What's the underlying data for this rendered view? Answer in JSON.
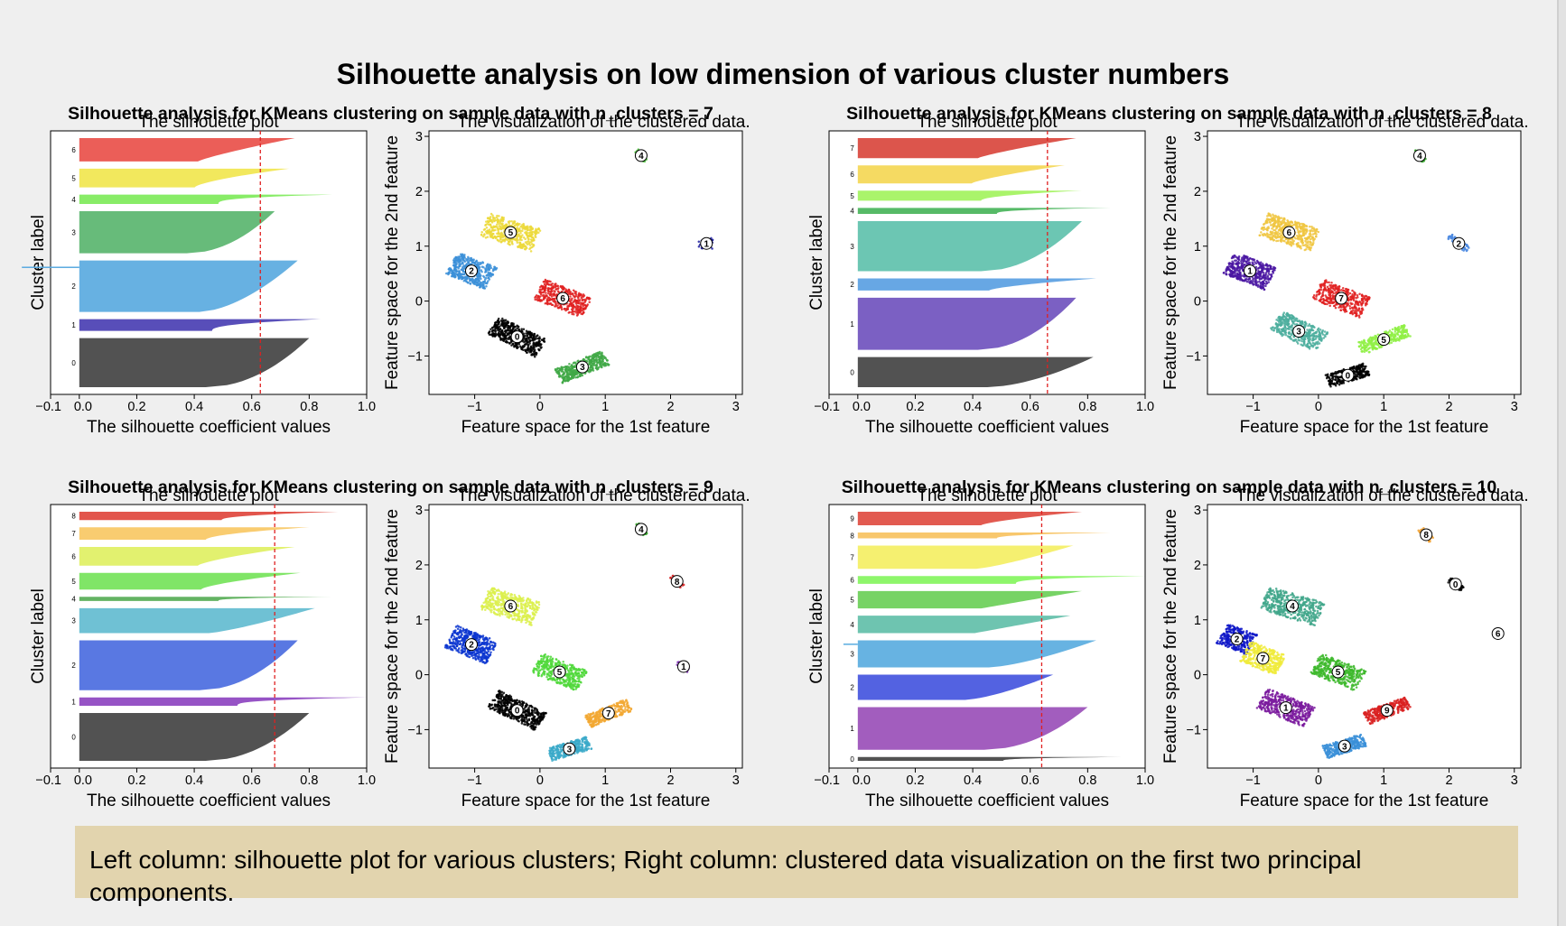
{
  "page": {
    "title": "Silhouette analysis on low dimension of various cluster numbers",
    "caption": "Left column: silhouette plot for various clusters; Right column: clustered data visualization on the first two principal components."
  },
  "labels": {
    "sil_title": "The silhouette plot",
    "sil_xlabel": "The silhouette coefficient values",
    "sil_ylabel": "Cluster label",
    "scat_title": "The visualization of the clustered data.",
    "scat_xlabel": "Feature space for the 1st feature",
    "scat_ylabel": "Feature space for the 2nd feature"
  },
  "chart_data": [
    {
      "type": "bar",
      "title": "Silhouette analysis for KMeans clustering on sample data with n_clusters = 7",
      "n_clusters": 7,
      "silhouette": {
        "xlim": [
          -0.1,
          1.0
        ],
        "xticks": [
          "-0.1",
          "0.0",
          "0.2",
          "0.4",
          "0.6",
          "0.8",
          "1.0"
        ],
        "avg_score": 0.63,
        "clusters": [
          {
            "label": "0",
            "color": "#434343",
            "size": 0.21,
            "max": 0.8,
            "shape": 0.5
          },
          {
            "label": "1",
            "color": "#4a3fb3",
            "size": 0.05,
            "max": 0.84,
            "shape": 2.5
          },
          {
            "label": "2",
            "color": "#5aaae0",
            "size": 0.22,
            "max": 0.76,
            "shape": 0.6,
            "neg": -0.2
          },
          {
            "label": "3",
            "color": "#5ab56f",
            "size": 0.18,
            "max": 0.68,
            "shape": 0.5
          },
          {
            "label": "4",
            "color": "#7eea5a",
            "size": 0.04,
            "max": 0.88,
            "shape": 3
          },
          {
            "label": "5",
            "color": "#f1e64f",
            "size": 0.08,
            "max": 0.73,
            "shape": 1.5
          },
          {
            "label": "6",
            "color": "#e9504a",
            "size": 0.1,
            "max": 0.75,
            "shape": 1.2
          }
        ]
      },
      "scatter": {
        "xlim": [
          -1.7,
          3.1
        ],
        "ylim": [
          -1.7,
          3.1
        ],
        "xticks": [
          -1,
          0,
          1,
          2,
          3
        ],
        "yticks": [
          -1,
          0,
          1,
          2,
          3
        ],
        "xticklabels": [
          "−1",
          "0",
          "1",
          "2",
          "3"
        ],
        "yticklabels": [
          "−1",
          "0",
          "1",
          "2",
          "3"
        ],
        "clusters": [
          {
            "label": "0",
            "color": "#000000",
            "cx": -0.35,
            "cy": -0.65,
            "sx": 0.42,
            "sy": 0.18,
            "rot": -30,
            "n": 500
          },
          {
            "label": "1",
            "color": "#1f1fa0",
            "cx": 2.55,
            "cy": 1.05,
            "sx": 0.12,
            "sy": 0.1,
            "rot": 0,
            "n": 30
          },
          {
            "label": "2",
            "color": "#3b8fd8",
            "cx": -1.05,
            "cy": 0.55,
            "sx": 0.33,
            "sy": 0.22,
            "rot": -25,
            "n": 450
          },
          {
            "label": "3",
            "color": "#3fa845",
            "cx": 0.65,
            "cy": -1.2,
            "sx": 0.4,
            "sy": 0.14,
            "rot": 25,
            "n": 400
          },
          {
            "label": "4",
            "color": "#4cbf3c",
            "cx": 1.55,
            "cy": 2.65,
            "sx": 0.12,
            "sy": 0.04,
            "rot": -55,
            "n": 50
          },
          {
            "label": "5",
            "color": "#ecd93a",
            "cx": -0.45,
            "cy": 1.25,
            "sx": 0.42,
            "sy": 0.22,
            "rot": -20,
            "n": 450
          },
          {
            "label": "6",
            "color": "#e02020",
            "cx": 0.35,
            "cy": 0.05,
            "sx": 0.4,
            "sy": 0.2,
            "rot": -25,
            "n": 400
          }
        ]
      }
    },
    {
      "type": "bar",
      "title": "Silhouette analysis for KMeans clustering on sample data with n_clusters = 8",
      "n_clusters": 8,
      "silhouette": {
        "xlim": [
          -0.1,
          1.0
        ],
        "xticks": [
          "-0.1",
          "0.0",
          "0.2",
          "0.4",
          "0.6",
          "0.8",
          "1.0"
        ],
        "avg_score": 0.66,
        "clusters": [
          {
            "label": "0",
            "color": "#434343",
            "size": 0.15,
            "max": 0.82,
            "shape": 0.6
          },
          {
            "label": "1",
            "color": "#7053be",
            "size": 0.26,
            "max": 0.76,
            "shape": 0.5
          },
          {
            "label": "2",
            "color": "#5a9fe2",
            "size": 0.06,
            "max": 0.83,
            "shape": 1.5
          },
          {
            "label": "3",
            "color": "#5fc1ad",
            "size": 0.25,
            "max": 0.78,
            "shape": 0.5
          },
          {
            "label": "4",
            "color": "#48b45a",
            "size": 0.03,
            "max": 0.88,
            "shape": 3
          },
          {
            "label": "5",
            "color": "#a3f35e",
            "size": 0.05,
            "max": 0.78,
            "shape": 2
          },
          {
            "label": "6",
            "color": "#f4d755",
            "size": 0.09,
            "max": 0.72,
            "shape": 1.3
          },
          {
            "label": "7",
            "color": "#d9463d",
            "size": 0.1,
            "max": 0.76,
            "shape": 1.2
          }
        ]
      },
      "scatter": {
        "xlim": [
          -1.7,
          3.1
        ],
        "ylim": [
          -1.7,
          3.1
        ],
        "xticks": [
          -1,
          0,
          1,
          2,
          3
        ],
        "yticks": [
          -1,
          0,
          1,
          2,
          3
        ],
        "xticklabels": [
          "−1",
          "0",
          "1",
          "2",
          "3"
        ],
        "yticklabels": [
          "−1",
          "0",
          "1",
          "2",
          "3"
        ],
        "clusters": [
          {
            "label": "0",
            "color": "#000000",
            "cx": 0.45,
            "cy": -1.35,
            "sx": 0.32,
            "sy": 0.12,
            "rot": 20,
            "n": 300
          },
          {
            "label": "1",
            "color": "#4a16a2",
            "cx": -1.05,
            "cy": 0.55,
            "sx": 0.35,
            "sy": 0.22,
            "rot": -25,
            "n": 450
          },
          {
            "label": "2",
            "color": "#4a88e0",
            "cx": 2.15,
            "cy": 1.05,
            "sx": 0.2,
            "sy": 0.06,
            "rot": -40,
            "n": 60
          },
          {
            "label": "3",
            "color": "#4cae9d",
            "cx": -0.3,
            "cy": -0.55,
            "sx": 0.4,
            "sy": 0.2,
            "rot": -30,
            "n": 450
          },
          {
            "label": "4",
            "color": "#3aa830",
            "cx": 1.55,
            "cy": 2.65,
            "sx": 0.12,
            "sy": 0.04,
            "rot": -55,
            "n": 50
          },
          {
            "label": "5",
            "color": "#8ff044",
            "cx": 1.0,
            "cy": -0.7,
            "sx": 0.4,
            "sy": 0.12,
            "rot": 25,
            "n": 300
          },
          {
            "label": "6",
            "color": "#f0c640",
            "cx": -0.45,
            "cy": 1.25,
            "sx": 0.42,
            "sy": 0.22,
            "rot": -20,
            "n": 450
          },
          {
            "label": "7",
            "color": "#e02020",
            "cx": 0.35,
            "cy": 0.05,
            "sx": 0.4,
            "sy": 0.2,
            "rot": -25,
            "n": 400
          }
        ]
      }
    },
    {
      "type": "bar",
      "title": "Silhouette analysis for KMeans clustering on sample data with n_clusters = 9",
      "n_clusters": 9,
      "silhouette": {
        "xlim": [
          -0.1,
          1.0
        ],
        "xticks": [
          "-0.1",
          "0.0",
          "0.2",
          "0.4",
          "0.6",
          "0.8",
          "1.0"
        ],
        "avg_score": 0.68,
        "clusters": [
          {
            "label": "0",
            "color": "#434343",
            "size": 0.23,
            "max": 0.8,
            "shape": 0.5
          },
          {
            "label": "1",
            "color": "#8d44c0",
            "size": 0.04,
            "max": 1.0,
            "shape": 3
          },
          {
            "label": "2",
            "color": "#4b6ce0",
            "size": 0.24,
            "max": 0.76,
            "shape": 0.5
          },
          {
            "label": "3",
            "color": "#63bcd0",
            "size": 0.12,
            "max": 0.82,
            "shape": 0.8
          },
          {
            "label": "4",
            "color": "#56ad55",
            "size": 0.02,
            "max": 0.88,
            "shape": 3
          },
          {
            "label": "5",
            "color": "#75e35a",
            "size": 0.08,
            "max": 0.77,
            "shape": 1.5
          },
          {
            "label": "6",
            "color": "#dff063",
            "size": 0.09,
            "max": 0.75,
            "shape": 1.4
          },
          {
            "label": "7",
            "color": "#f9c864",
            "size": 0.06,
            "max": 0.8,
            "shape": 1.8
          },
          {
            "label": "8",
            "color": "#e0473d",
            "size": 0.04,
            "max": 0.9,
            "shape": 2.2
          }
        ]
      },
      "scatter": {
        "xlim": [
          -1.7,
          3.1
        ],
        "ylim": [
          -1.7,
          3.1
        ],
        "xticks": [
          -1,
          0,
          1,
          2,
          3
        ],
        "yticks": [
          -1,
          0,
          1,
          2,
          3
        ],
        "xticklabels": [
          "−1",
          "0",
          "1",
          "2",
          "3"
        ],
        "yticklabels": [
          "−1",
          "0",
          "1",
          "2",
          "3"
        ],
        "clusters": [
          {
            "label": "0",
            "color": "#000000",
            "cx": -0.35,
            "cy": -0.65,
            "sx": 0.42,
            "sy": 0.18,
            "rot": -30,
            "n": 500
          },
          {
            "label": "1",
            "color": "#7b2cb3",
            "cx": 2.2,
            "cy": 0.15,
            "sx": 0.12,
            "sy": 0.05,
            "rot": -45,
            "n": 30
          },
          {
            "label": "2",
            "color": "#0a35d0",
            "cx": -1.05,
            "cy": 0.55,
            "sx": 0.35,
            "sy": 0.22,
            "rot": -25,
            "n": 450
          },
          {
            "label": "3",
            "color": "#3aa9c9",
            "cx": 0.45,
            "cy": -1.35,
            "sx": 0.32,
            "sy": 0.12,
            "rot": 20,
            "n": 300
          },
          {
            "label": "4",
            "color": "#3aa830",
            "cx": 1.55,
            "cy": 2.65,
            "sx": 0.12,
            "sy": 0.04,
            "rot": -55,
            "n": 50
          },
          {
            "label": "5",
            "color": "#4fd83a",
            "cx": 0.3,
            "cy": 0.05,
            "sx": 0.38,
            "sy": 0.2,
            "rot": -25,
            "n": 400
          },
          {
            "label": "6",
            "color": "#dcf04c",
            "cx": -0.45,
            "cy": 1.25,
            "sx": 0.42,
            "sy": 0.22,
            "rot": -20,
            "n": 450
          },
          {
            "label": "7",
            "color": "#f2a833",
            "cx": 1.05,
            "cy": -0.7,
            "sx": 0.35,
            "sy": 0.12,
            "rot": 25,
            "n": 300
          },
          {
            "label": "8",
            "color": "#d92a2a",
            "cx": 2.1,
            "cy": 1.7,
            "sx": 0.12,
            "sy": 0.05,
            "rot": -45,
            "n": 50
          }
        ]
      }
    },
    {
      "type": "bar",
      "title": "Silhouette analysis for KMeans clustering on sample data with n_clusters = 10",
      "n_clusters": 10,
      "silhouette": {
        "xlim": [
          -0.1,
          1.0
        ],
        "xticks": [
          "-0.1",
          "0.0",
          "0.2",
          "0.4",
          "0.6",
          "0.8",
          "1.0"
        ],
        "avg_score": 0.64,
        "clusters": [
          {
            "label": "0",
            "color": "#434343",
            "size": 0.02,
            "max": 0.92,
            "shape": 3
          },
          {
            "label": "1",
            "color": "#9a4fb8",
            "size": 0.22,
            "max": 0.8,
            "shape": 0.5
          },
          {
            "label": "2",
            "color": "#4455de",
            "size": 0.13,
            "max": 0.68,
            "shape": 0.7
          },
          {
            "label": "3",
            "color": "#5aace0",
            "size": 0.14,
            "max": 0.83,
            "shape": 0.7,
            "neg": -0.05
          },
          {
            "label": "4",
            "color": "#62bfa9",
            "size": 0.09,
            "max": 0.74,
            "shape": 1
          },
          {
            "label": "5",
            "color": "#6bcf58",
            "size": 0.09,
            "max": 0.78,
            "shape": 1
          },
          {
            "label": "6",
            "color": "#84f55e",
            "size": 0.04,
            "max": 1.0,
            "shape": 3
          },
          {
            "label": "7",
            "color": "#f4ef64",
            "size": 0.12,
            "max": 0.75,
            "shape": 0.8
          },
          {
            "label": "8",
            "color": "#f7c261",
            "size": 0.03,
            "max": 0.88,
            "shape": 2.5
          },
          {
            "label": "9",
            "color": "#df4c41",
            "size": 0.07,
            "max": 0.78,
            "shape": 1.4
          }
        ]
      },
      "scatter": {
        "xlim": [
          -1.7,
          3.1
        ],
        "ylim": [
          -1.7,
          3.1
        ],
        "xticks": [
          -1,
          0,
          1,
          2,
          3
        ],
        "yticks": [
          -1,
          0,
          1,
          2,
          3
        ],
        "xticklabels": [
          "−1",
          "0",
          "1",
          "2",
          "3"
        ],
        "yticklabels": [
          "−1",
          "0",
          "1",
          "2",
          "3"
        ],
        "clusters": [
          {
            "label": "0",
            "color": "#000000",
            "cx": 2.1,
            "cy": 1.65,
            "sx": 0.14,
            "sy": 0.05,
            "rot": -40,
            "n": 60
          },
          {
            "label": "1",
            "color": "#7a1a9e",
            "cx": -0.5,
            "cy": -0.6,
            "sx": 0.4,
            "sy": 0.2,
            "rot": -25,
            "n": 450
          },
          {
            "label": "2",
            "color": "#0e16c8",
            "cx": -1.25,
            "cy": 0.65,
            "sx": 0.25,
            "sy": 0.2,
            "rot": -25,
            "n": 300
          },
          {
            "label": "3",
            "color": "#3a8fd8",
            "cx": 0.4,
            "cy": -1.3,
            "sx": 0.32,
            "sy": 0.12,
            "rot": 20,
            "n": 300
          },
          {
            "label": "4",
            "color": "#3fa68a",
            "cx": -0.4,
            "cy": 1.25,
            "sx": 0.45,
            "sy": 0.22,
            "rot": -20,
            "n": 450
          },
          {
            "label": "5",
            "color": "#3db82c",
            "cx": 0.3,
            "cy": 0.05,
            "sx": 0.38,
            "sy": 0.2,
            "rot": -25,
            "n": 400
          },
          {
            "label": "6",
            "color": "#2eb45a",
            "cx": 2.75,
            "cy": 0.75,
            "sx": 0.08,
            "sy": 0.06,
            "rot": 0,
            "n": 12
          },
          {
            "label": "7",
            "color": "#f0eb3a",
            "cx": -0.85,
            "cy": 0.3,
            "sx": 0.3,
            "sy": 0.2,
            "rot": -25,
            "n": 350
          },
          {
            "label": "8",
            "color": "#f0a030",
            "cx": 1.65,
            "cy": 2.55,
            "sx": 0.14,
            "sy": 0.05,
            "rot": -50,
            "n": 50
          },
          {
            "label": "9",
            "color": "#d92020",
            "cx": 1.05,
            "cy": -0.65,
            "sx": 0.35,
            "sy": 0.12,
            "rot": 25,
            "n": 300
          }
        ]
      }
    }
  ]
}
